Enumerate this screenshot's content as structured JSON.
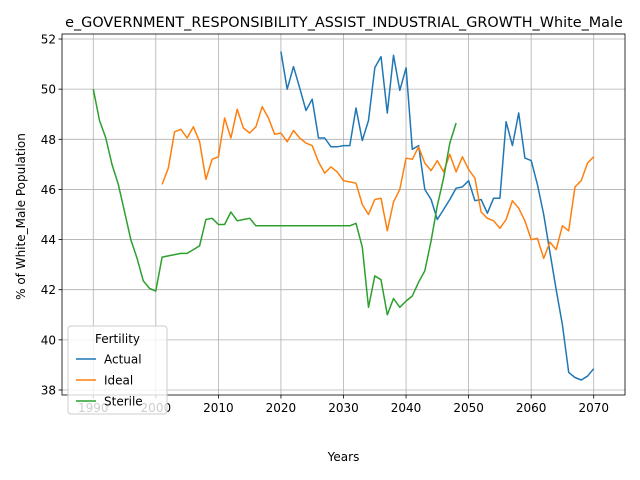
{
  "chart_data": {
    "type": "line",
    "title": "e_GOVERNMENT_RESPONSIBILITY_ASSIST_INDUSTRIAL_GROWTH_White_Male",
    "xlabel": "Years",
    "ylabel": "% of White_Male Population",
    "xlim": [
      1985,
      2075
    ],
    "ylim": [
      37.8,
      52.2
    ],
    "xticks": [
      1990,
      2000,
      2010,
      2020,
      2030,
      2040,
      2050,
      2060,
      2070
    ],
    "yticks": [
      38,
      40,
      42,
      44,
      46,
      48,
      50,
      52
    ],
    "grid": true,
    "legend": {
      "title": "Fertility",
      "position": "lower-left"
    },
    "series": [
      {
        "name": "Actual",
        "color": "#1f77b4",
        "x": [
          2020,
          2021,
          2022,
          2023,
          2024,
          2025,
          2026,
          2027,
          2028,
          2029,
          2030,
          2031,
          2032,
          2033,
          2034,
          2035,
          2036,
          2037,
          2038,
          2039,
          2040,
          2041,
          2042,
          2043,
          2044,
          2045,
          2046,
          2047,
          2048,
          2049,
          2050,
          2051,
          2052,
          2053,
          2054,
          2055,
          2056,
          2057,
          2058,
          2059,
          2060,
          2061,
          2062,
          2063,
          2064,
          2065,
          2066,
          2067,
          2068,
          2069,
          2070
        ],
        "y": [
          51.5,
          50.0,
          50.9,
          50.05,
          49.15,
          49.6,
          48.05,
          48.05,
          47.7,
          47.7,
          47.75,
          47.75,
          49.25,
          47.95,
          48.75,
          50.85,
          51.3,
          49.05,
          51.35,
          49.95,
          50.85,
          47.6,
          47.75,
          46.0,
          45.6,
          44.8,
          45.2,
          45.6,
          46.05,
          46.1,
          46.35,
          45.55,
          45.6,
          45.05,
          45.65,
          45.65,
          48.7,
          47.75,
          49.05,
          47.25,
          47.15,
          46.2,
          45.0,
          43.5,
          42.0,
          40.6,
          38.7,
          38.5,
          38.4,
          38.55,
          38.85
        ]
      },
      {
        "name": "Ideal",
        "color": "#ff7f0e",
        "x": [
          2001,
          2002,
          2003,
          2004,
          2005,
          2006,
          2007,
          2008,
          2009,
          2010,
          2011,
          2012,
          2013,
          2014,
          2015,
          2016,
          2017,
          2018,
          2019,
          2020,
          2021,
          2022,
          2023,
          2024,
          2025,
          2026,
          2027,
          2028,
          2029,
          2030,
          2031,
          2032,
          2033,
          2034,
          2035,
          2036,
          2037,
          2038,
          2039,
          2040,
          2041,
          2042,
          2043,
          2044,
          2045,
          2046,
          2047,
          2048,
          2049,
          2050,
          2051,
          2052,
          2053,
          2054,
          2055,
          2056,
          2057,
          2058,
          2059,
          2060,
          2061,
          2062,
          2063,
          2064,
          2065,
          2066,
          2067,
          2068,
          2069,
          2070
        ],
        "y": [
          46.2,
          46.85,
          48.3,
          48.4,
          48.05,
          48.5,
          47.9,
          46.4,
          47.2,
          47.3,
          48.85,
          48.05,
          49.2,
          48.45,
          48.25,
          48.5,
          49.3,
          48.85,
          48.2,
          48.25,
          47.9,
          48.35,
          48.05,
          47.85,
          47.75,
          47.1,
          46.65,
          46.9,
          46.7,
          46.35,
          46.3,
          46.25,
          45.4,
          45.0,
          45.6,
          45.65,
          44.35,
          45.5,
          46.0,
          47.25,
          47.2,
          47.7,
          47.05,
          46.75,
          47.15,
          46.7,
          47.4,
          46.7,
          47.3,
          46.8,
          46.45,
          45.1,
          44.85,
          44.75,
          44.45,
          44.8,
          45.55,
          45.25,
          44.75,
          44.0,
          44.05,
          43.25,
          43.9,
          43.6,
          44.55,
          44.35,
          46.1,
          46.35,
          47.05,
          47.3
        ]
      },
      {
        "name": "Sterile",
        "color": "#2ca02c",
        "x": [
          1990,
          1991,
          1992,
          1993,
          1994,
          1995,
          1996,
          1997,
          1998,
          1999,
          2000,
          2001,
          2002,
          2003,
          2004,
          2005,
          2006,
          2007,
          2008,
          2009,
          2010,
          2011,
          2012,
          2013,
          2014,
          2015,
          2016,
          2017,
          2018,
          2019,
          2020,
          2021,
          2022,
          2023,
          2024,
          2025,
          2026,
          2027,
          2028,
          2029,
          2030,
          2031,
          2032,
          2033,
          2034,
          2035,
          2036,
          2037,
          2038,
          2039,
          2040,
          2041,
          2042,
          2043,
          2044,
          2045,
          2046,
          2047,
          2048
        ],
        "y": [
          50.0,
          48.75,
          48.05,
          47.0,
          46.2,
          45.1,
          44.0,
          43.25,
          42.35,
          42.05,
          41.95,
          43.3,
          43.35,
          43.4,
          43.45,
          43.45,
          43.6,
          43.75,
          44.8,
          44.85,
          44.6,
          44.6,
          45.1,
          44.75,
          44.8,
          44.85,
          44.55,
          44.55,
          44.55,
          44.55,
          44.55,
          44.55,
          44.55,
          44.55,
          44.55,
          44.55,
          44.55,
          44.55,
          44.55,
          44.55,
          44.55,
          44.55,
          44.65,
          43.7,
          41.3,
          42.55,
          42.4,
          41.0,
          41.65,
          41.3,
          41.55,
          41.75,
          42.3,
          42.75,
          43.95,
          45.35,
          46.45,
          47.85,
          48.65
        ]
      }
    ]
  }
}
